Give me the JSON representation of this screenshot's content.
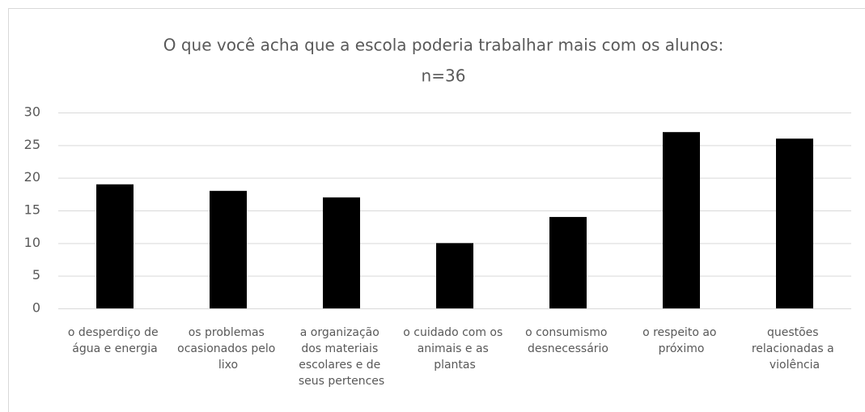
{
  "chart_data": {
    "type": "bar",
    "title": "O que você acha que a escola poderia trabalhar mais com os alunos:",
    "subtitle": "n=36",
    "categories": [
      "o desperdiço de água e energia",
      "os problemas ocasionados pelo lixo",
      "a organização dos materiais escolares e de seus pertences",
      "o cuidado com os animais e as plantas",
      "o consumismo desnecessário",
      "o respeito ao próximo",
      "questões relacionadas a violência"
    ],
    "values": [
      19,
      18,
      17,
      10,
      14,
      27,
      26
    ],
    "color": "#000000",
    "ylim": [
      0,
      30
    ],
    "yticks": [
      0,
      5,
      10,
      15,
      20,
      25,
      30
    ],
    "grid": true
  }
}
